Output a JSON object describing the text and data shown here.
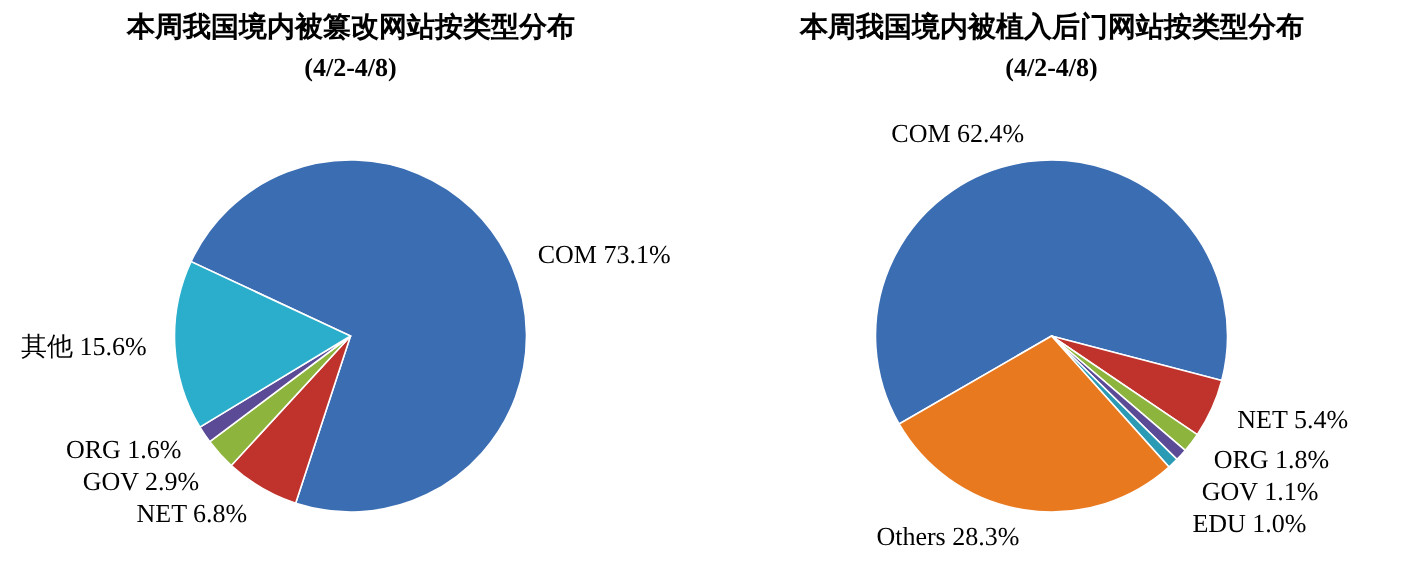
{
  "chart_data": [
    {
      "type": "pie",
      "title": "本周我国境内被篡改网站按类型分布",
      "subtitle": "(4/2-4/8)",
      "categories": [
        "COM",
        "NET",
        "GOV",
        "ORG",
        "其他"
      ],
      "values": [
        73.1,
        6.8,
        2.9,
        1.6,
        15.6
      ],
      "value_labels": [
        "73.1%",
        "6.8%",
        "2.9%",
        "1.6%",
        "15.6%"
      ],
      "colors": [
        "#3b6db3",
        "#c0322c",
        "#8db43c",
        "#5b4a96",
        "#2aaecb"
      ]
    },
    {
      "type": "pie",
      "title": "本周我国境内被植入后门网站按类型分布",
      "subtitle": "(4/2-4/8)",
      "categories": [
        "COM",
        "NET",
        "ORG",
        "GOV",
        "EDU",
        "Others"
      ],
      "values": [
        62.4,
        5.4,
        1.8,
        1.1,
        1.0,
        28.3
      ],
      "value_labels": [
        "62.4%",
        "5.4%",
        "1.8%",
        "1.1%",
        "1.0%",
        "28.3%"
      ],
      "colors": [
        "#3b6db3",
        "#c0322c",
        "#8db43c",
        "#5b4a96",
        "#2a9ab5",
        "#e8791f"
      ]
    }
  ]
}
